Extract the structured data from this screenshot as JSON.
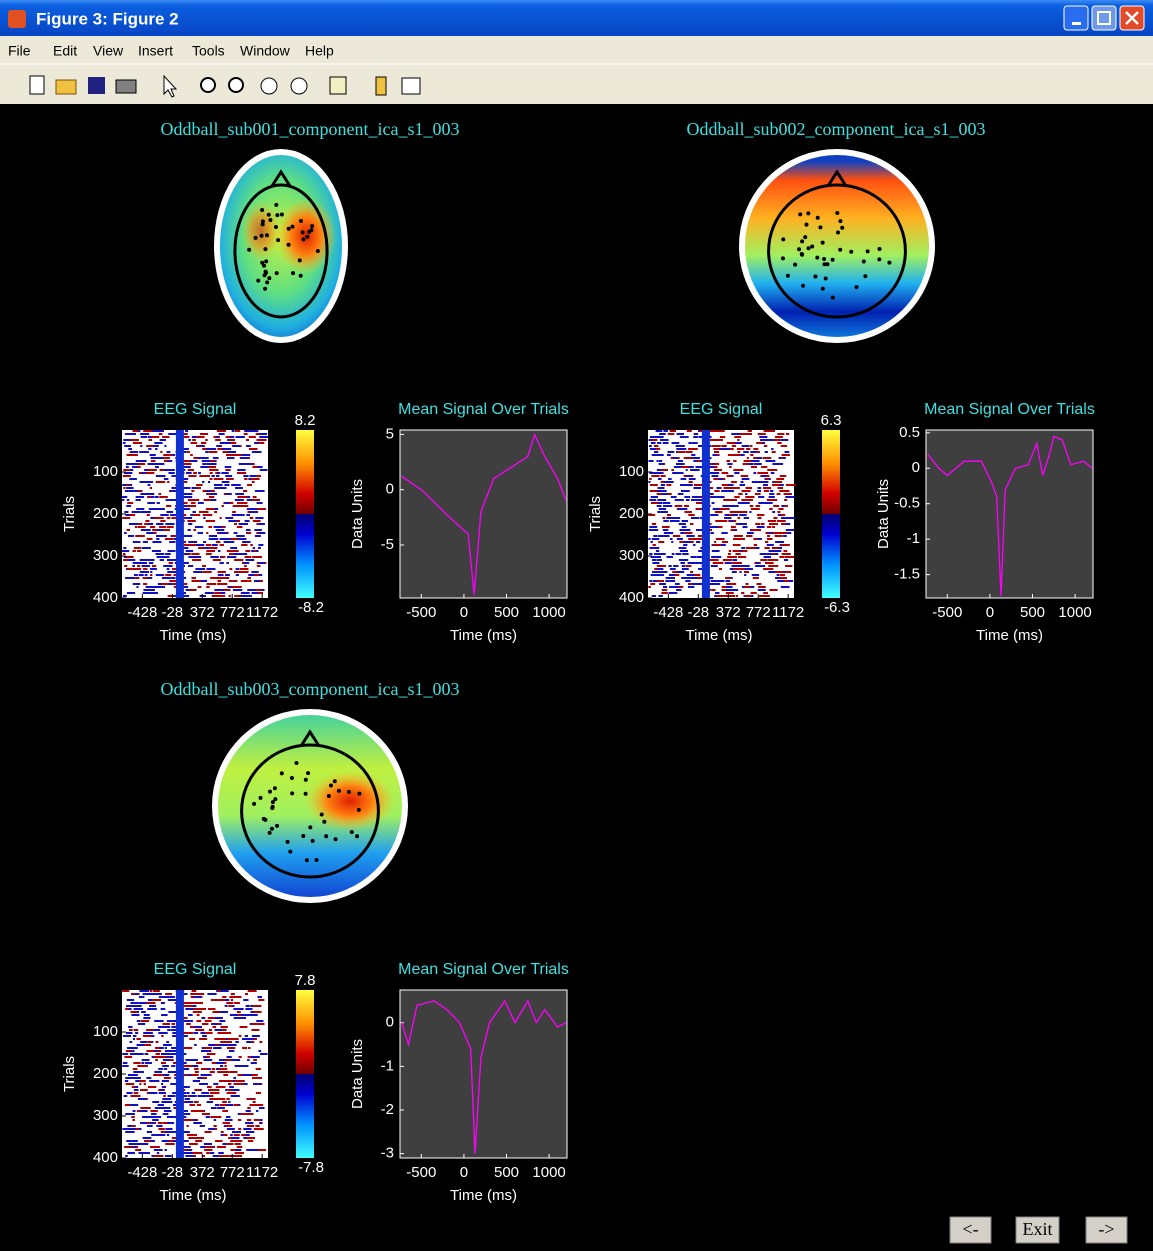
{
  "window": {
    "title": "Figure 3: Figure  2",
    "menu": [
      "File",
      "Edit",
      "View",
      "Insert",
      "Tools",
      "Window",
      "Help"
    ]
  },
  "panels": [
    {
      "topo_title": "Oddball_sub001_component_ica_s1_003",
      "image": {
        "title": "EEG Signal",
        "ylabel": "Trials",
        "xlabel": "Time (ms)",
        "ylim": [
          0,
          400
        ],
        "yticks": [
          100,
          200,
          300,
          400
        ],
        "xlim": [
          -700,
          1250
        ],
        "xticks": [
          -428,
          -28,
          372,
          772,
          1172
        ]
      },
      "colorbar": {
        "max": 8.2,
        "min": -8.2
      },
      "mean": {
        "title": "Mean Signal Over Trials",
        "ylabel": "Data Units",
        "xlabel": "Time (ms)",
        "xlim": [
          -750,
          1210
        ],
        "ylim": [
          -9.8,
          5.4
        ],
        "xticks": [
          -500,
          0,
          500,
          1000
        ],
        "yticks": [
          -5,
          0,
          5
        ],
        "color": "#ff00ff",
        "x": [
          -730,
          -500,
          -300,
          -100,
          50,
          120,
          200,
          350,
          550,
          750,
          830,
          950,
          1100,
          1200
        ],
        "values": [
          1.2,
          0,
          -1.5,
          -3,
          -4,
          -9.5,
          -2,
          1,
          2,
          3,
          5,
          3,
          1,
          -1
        ]
      }
    },
    {
      "topo_title": "Oddball_sub002_component_ica_s1_003",
      "image": {
        "title": "EEG Signal",
        "ylabel": "Trials",
        "xlabel": "Time (ms)",
        "ylim": [
          0,
          400
        ],
        "yticks": [
          100,
          200,
          300,
          400
        ],
        "xlim": [
          -700,
          1250
        ],
        "xticks": [
          -428,
          -28,
          372,
          772,
          1172
        ]
      },
      "colorbar": {
        "max": 6.3,
        "min": -6.3
      },
      "mean": {
        "title": "Mean Signal Over Trials",
        "ylabel": "Data Units",
        "xlabel": "Time (ms)",
        "xlim": [
          -750,
          1210
        ],
        "ylim": [
          -1.83,
          0.54
        ],
        "xticks": [
          -500,
          0,
          500,
          1000
        ],
        "yticks": [
          0.5,
          0,
          -0.5,
          -1,
          -1.5
        ],
        "color": "#ff00ff",
        "x": [
          -730,
          -600,
          -500,
          -300,
          -100,
          20,
          80,
          130,
          180,
          300,
          450,
          550,
          620,
          700,
          750,
          850,
          950,
          1100,
          1200
        ],
        "values": [
          0.2,
          0,
          -0.1,
          0.1,
          0.1,
          -0.2,
          -0.4,
          -1.8,
          -0.3,
          0,
          0.05,
          0.35,
          -0.1,
          0.2,
          0.45,
          0.4,
          0.05,
          0.1,
          0
        ]
      }
    },
    {
      "topo_title": "Oddball_sub003_component_ica_s1_003",
      "image": {
        "title": "EEG Signal",
        "ylabel": "Trials",
        "xlabel": "Time (ms)",
        "ylim": [
          0,
          400
        ],
        "yticks": [
          100,
          200,
          300,
          400
        ],
        "xlim": [
          -700,
          1250
        ],
        "xticks": [
          -428,
          -28,
          372,
          772,
          1172
        ]
      },
      "colorbar": {
        "max": 7.8,
        "min": -7.8
      },
      "mean": {
        "title": "Mean Signal Over Trials",
        "ylabel": "Data Units",
        "xlabel": "Time (ms)",
        "xlim": [
          -750,
          1210
        ],
        "ylim": [
          -3.1,
          0.75
        ],
        "xticks": [
          -500,
          0,
          500,
          1000
        ],
        "yticks": [
          0,
          -1,
          -2,
          -3
        ],
        "color": "#ff00ff",
        "x": [
          -730,
          -650,
          -550,
          -350,
          -200,
          -50,
          80,
          130,
          200,
          300,
          480,
          600,
          750,
          850,
          950,
          1100,
          1200
        ],
        "values": [
          0,
          -0.5,
          0.4,
          0.5,
          0.3,
          0,
          -0.6,
          -3,
          -0.8,
          0,
          0.5,
          0,
          0.5,
          0,
          0.3,
          -0.1,
          0
        ]
      }
    }
  ],
  "buttons": [
    "<-",
    "Exit",
    "->"
  ]
}
